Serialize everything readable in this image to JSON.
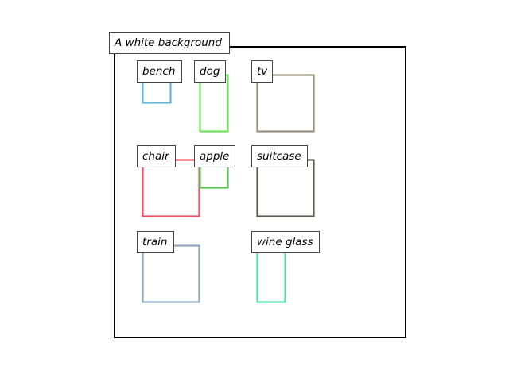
{
  "scene": {
    "caption": "A white background",
    "frame_color": "#000000"
  },
  "objects": [
    {
      "label": "bench",
      "color": "#5bbde6"
    },
    {
      "label": "dog",
      "color": "#6de35a"
    },
    {
      "label": "tv",
      "color": "#9a8f78"
    },
    {
      "label": "chair",
      "color": "#ee5266"
    },
    {
      "label": "apple",
      "color": "#5cc25a"
    },
    {
      "label": "suitcase",
      "color": "#5c5c55"
    },
    {
      "label": "train",
      "color": "#8ca8bf"
    },
    {
      "label": "wine glass",
      "color": "#4fe0a6"
    }
  ]
}
